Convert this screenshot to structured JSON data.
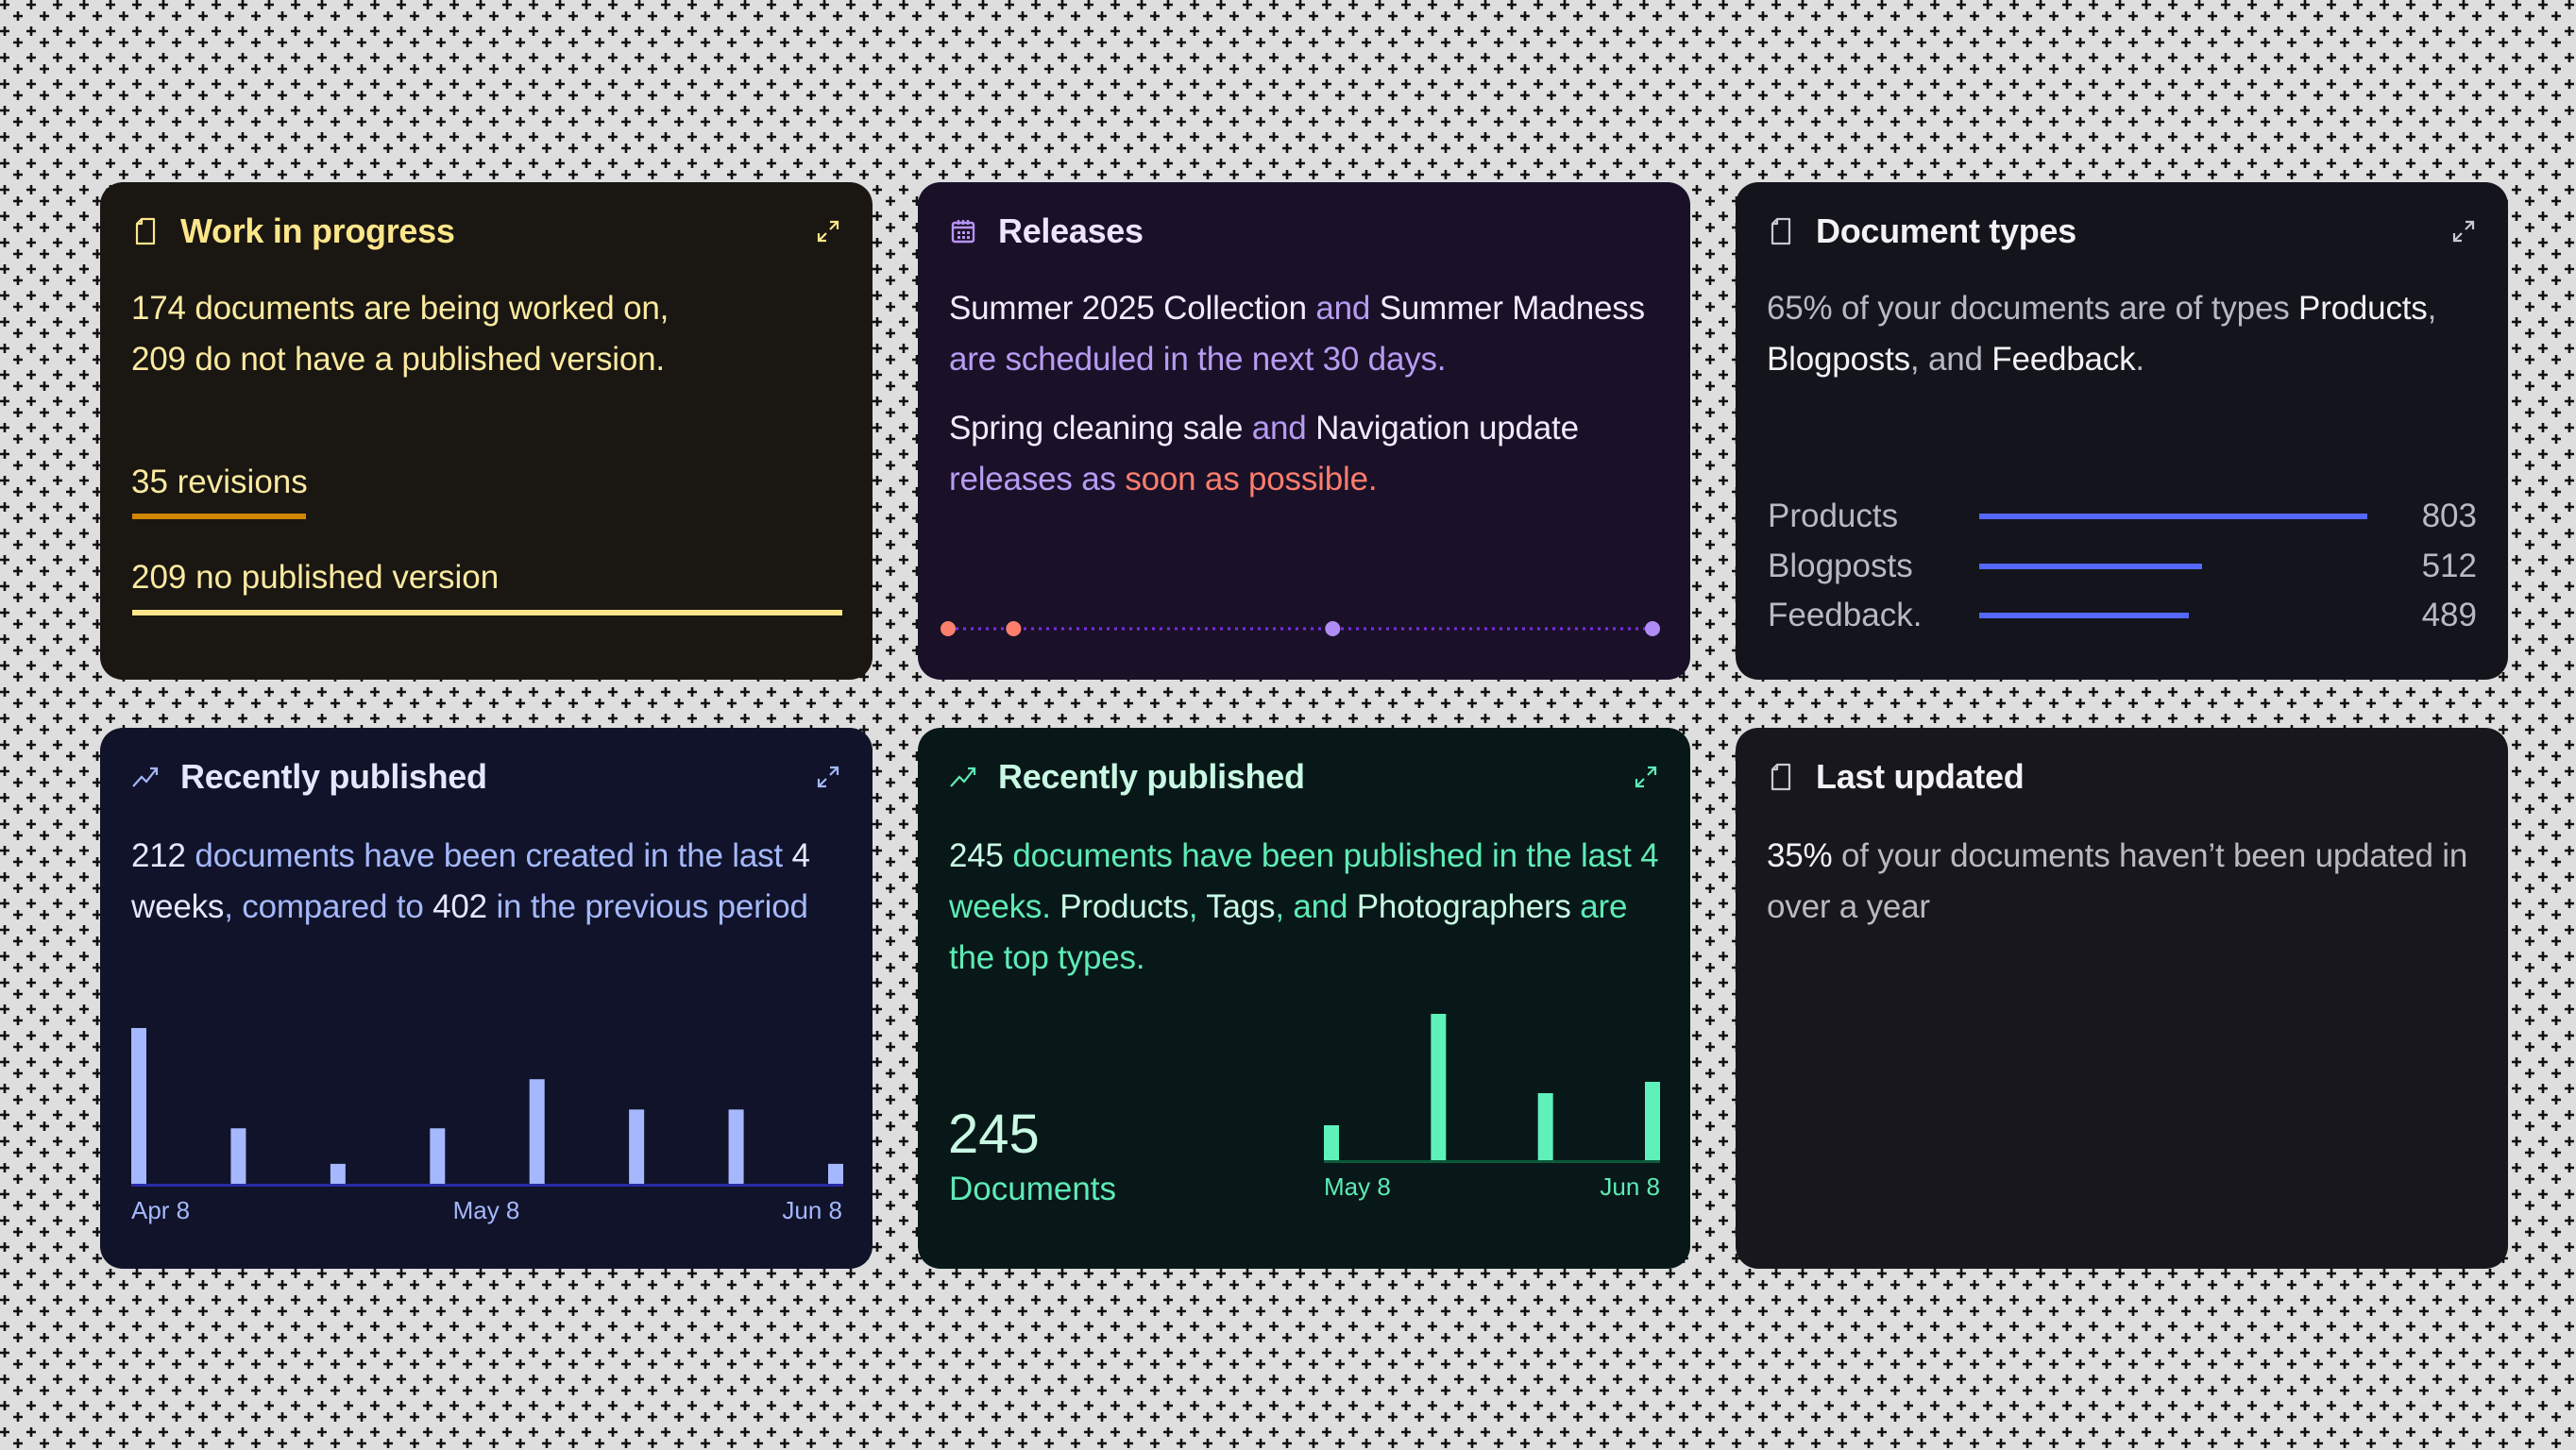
{
  "background": {
    "color": "#dedede",
    "pattern": "plus-grid",
    "pattern_color": "#111111"
  },
  "work_in_progress": {
    "title": "Work in progress",
    "icon": "document-icon",
    "line1": "174 documents are being worked on,",
    "line2": "209 do not have a published version.",
    "metrics": [
      {
        "label": "35 revisions",
        "fill_percent": 24.5,
        "color": "#d08700"
      },
      {
        "label": "209 no published version",
        "fill_percent": 100,
        "color": "#fde68a"
      }
    ]
  },
  "releases": {
    "title": "Releases",
    "icon": "calendar-icon",
    "p1": {
      "a": "Summer 2025 Collection",
      "b": " and ",
      "c": "Summer Madness",
      "d": " are scheduled in the next 30 days."
    },
    "p2": {
      "a": "Spring cleaning sale",
      "b": " and ",
      "c": "Navigation update",
      "d": " releases as ",
      "e": "soon as possible."
    },
    "timeline": {
      "line_color": "#7c2ee8",
      "dots": [
        {
          "status": "asap",
          "color": "#fb7f6c"
        },
        {
          "status": "asap",
          "color": "#fb7f6c"
        },
        {
          "status": "scheduled",
          "color": "#b08cf6"
        },
        {
          "status": "scheduled",
          "color": "#b08cf6"
        }
      ]
    }
  },
  "document_types": {
    "title": "Document types",
    "icon": "document-icon",
    "text": {
      "a": "65% of your documents are of types ",
      "b": "Products",
      "c": ", ",
      "d": "Blogposts",
      "e": ", and ",
      "f": "Feedback",
      "g": "."
    },
    "bar_color": "#5468ff",
    "rows": [
      {
        "label": "Products",
        "value": "803"
      },
      {
        "label": "Blogposts",
        "value": "512"
      },
      {
        "label": "Feedback.",
        "value": "489"
      }
    ]
  },
  "recently_created": {
    "title": "Recently published",
    "icon": "trending-up-icon",
    "text": {
      "a": "212",
      "b": " documents have been created in the last ",
      "c": "4 weeks",
      "d": ", compared to ",
      "e": "402",
      "f": " in the previous period"
    },
    "chart_data": {
      "type": "bar",
      "values": [
        15,
        5.4,
        2,
        5.4,
        10.1,
        7.2,
        7.2,
        2
      ],
      "x_ticks": [
        "Apr 8",
        "May 8",
        "Jun 8"
      ],
      "bar_color": "#a5b8fd",
      "axis_color": "#2a2aa8"
    }
  },
  "recently_published": {
    "title": "Recently published",
    "icon": "trending-up-icon",
    "text": {
      "a": "245",
      "b": " documents have been published in the last 4 weeks. ",
      "c": "Products",
      "d": ", ",
      "e": "Tags",
      "f": ", and ",
      "g": "Photographers",
      "h": " are the top types."
    },
    "big_number": "245",
    "big_label": "Documents",
    "chart_data": {
      "type": "bar",
      "values": [
        4.75,
        19.5,
        9,
        10.5
      ],
      "x_ticks": [
        "May 8",
        "Jun 8"
      ],
      "bar_color": "#5ef2ba",
      "axis_color": "#0b5a3a"
    }
  },
  "last_updated": {
    "title": "Last updated",
    "icon": "document-icon",
    "text": {
      "a": "35%",
      "b": " of your documents haven’t been updated in over a year"
    }
  }
}
